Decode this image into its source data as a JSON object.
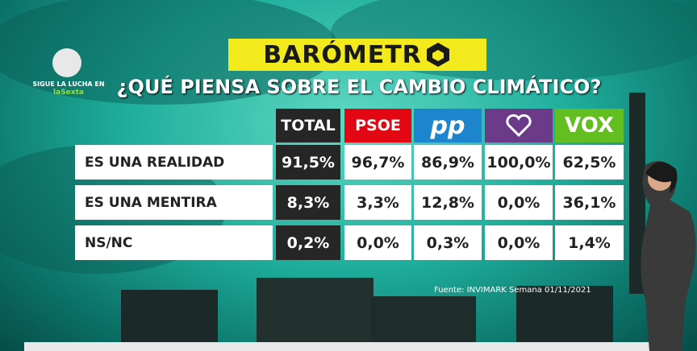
{
  "logo": {
    "line1": "SIGUE LA LUCHA EN",
    "line2": "laSexta"
  },
  "header": {
    "title": "BARÓMETR",
    "question": "¿QUÉ PIENSA SOBRE EL CAMBIO CLIMÁTICO?"
  },
  "table": {
    "headers": [
      "TOTAL",
      "PSOE",
      "pp",
      null,
      "VOX"
    ],
    "rows": [
      {
        "label": "ES UNA REALIDAD",
        "cells": [
          "91,5%",
          "96,7%",
          "86,9%",
          "100,0%",
          "62,5%"
        ]
      },
      {
        "label": "ES UNA MENTIRA",
        "cells": [
          "8,3%",
          "3,3%",
          "12,8%",
          "0,0%",
          "36,1%"
        ]
      },
      {
        "label": "NS/NC",
        "cells": [
          "0,2%",
          "0,0%",
          "0,3%",
          "0,0%",
          "1,4%"
        ]
      }
    ]
  },
  "source": "Fuente: INVIMARK Semana 01/11/2021"
}
